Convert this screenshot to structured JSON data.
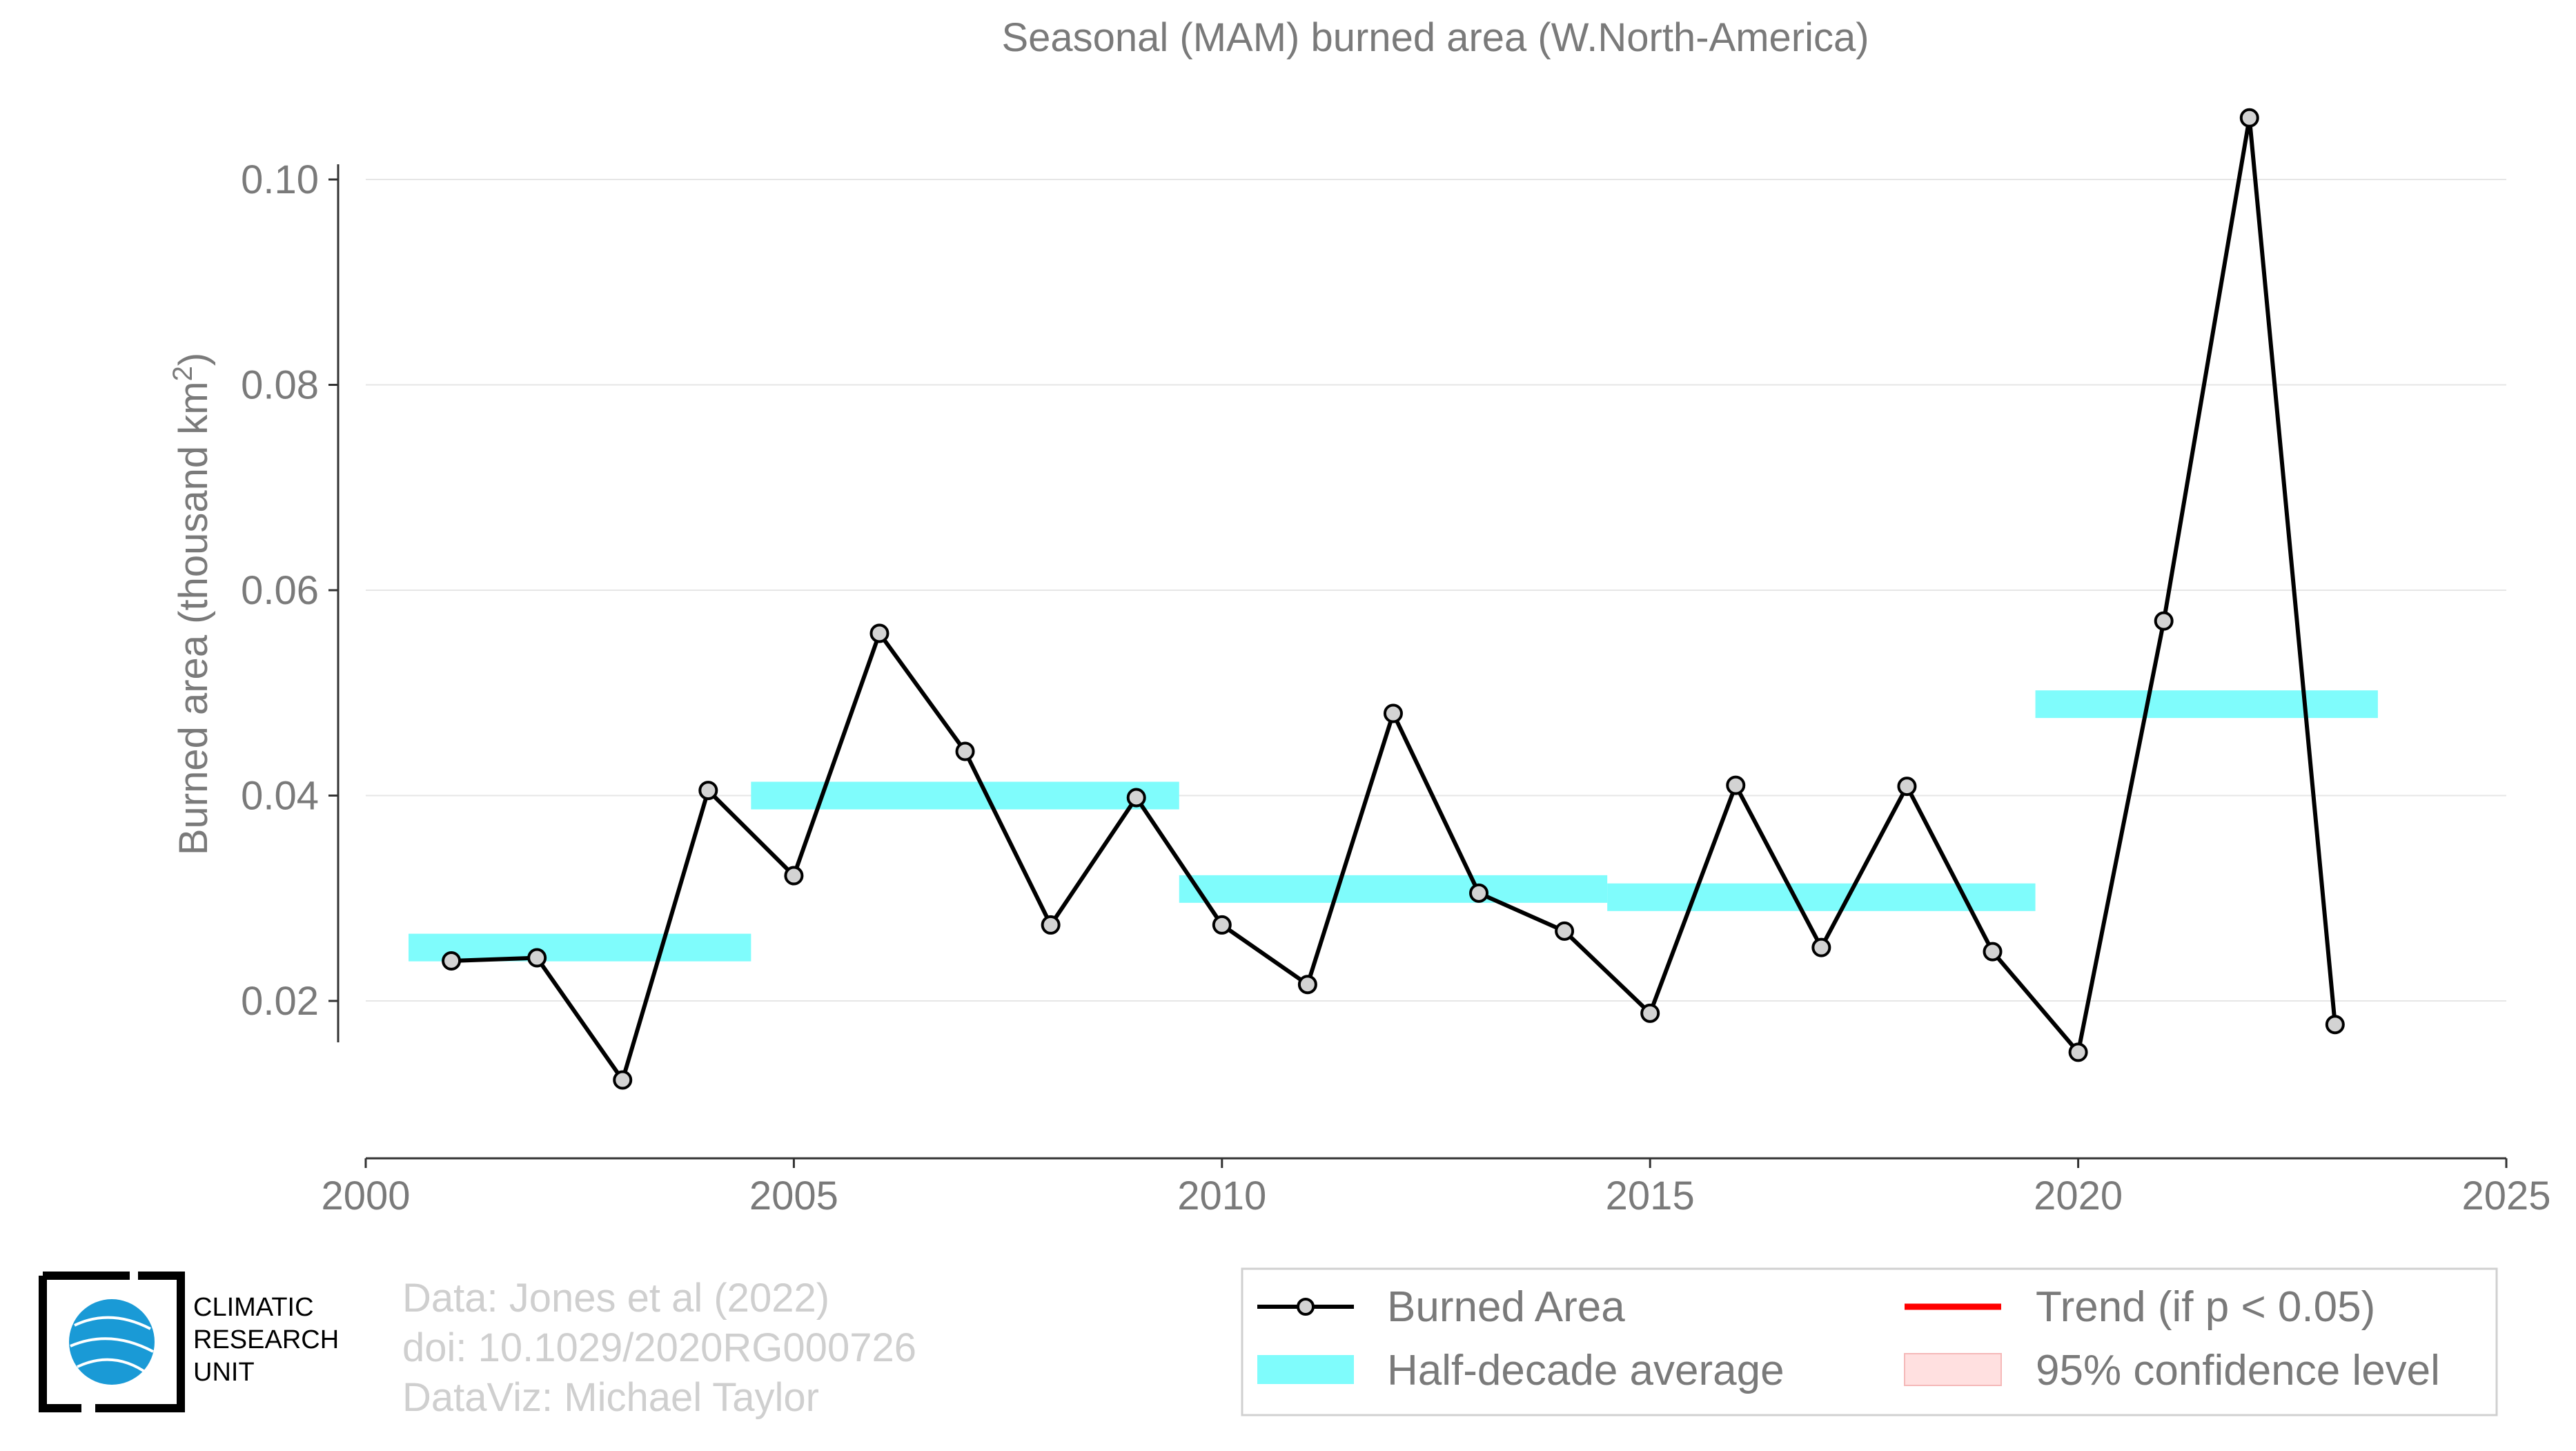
{
  "chart_data": {
    "type": "line",
    "title": "Seasonal (MAM) burned area (W.North-America)",
    "ylabel": "Burned area (thousand km",
    "ylabel_sup": "2",
    "ylabel_close": ")",
    "xlabel": "",
    "xlim": [
      2000,
      2025
    ],
    "ylim": [
      0.005,
      0.11
    ],
    "grid": true,
    "x_ticks": [
      2000,
      2005,
      2010,
      2015,
      2020,
      2025
    ],
    "x_tick_labels": [
      "2000",
      "2005",
      "2010",
      "2015",
      "2020",
      "2025"
    ],
    "y_ticks": [
      0.02,
      0.04,
      0.06,
      0.08,
      0.1
    ],
    "y_tick_labels": [
      "0.02",
      "0.04",
      "0.06",
      "0.08",
      "0.10"
    ],
    "series": [
      {
        "name": "Burned Area",
        "color": "#000000",
        "marker_fill": "#d3d3d3",
        "x": [
          2001,
          2002,
          2003,
          2004,
          2005,
          2006,
          2007,
          2008,
          2009,
          2010,
          2011,
          2012,
          2013,
          2014,
          2015,
          2016,
          2017,
          2018,
          2019,
          2020,
          2021,
          2022,
          2023
        ],
        "values": [
          0.0239,
          0.0242,
          0.0123,
          0.0405,
          0.0322,
          0.0558,
          0.0443,
          0.0274,
          0.0398,
          0.0274,
          0.0216,
          0.048,
          0.0305,
          0.0268,
          0.0188,
          0.041,
          0.0252,
          0.0409,
          0.0248,
          0.015,
          0.057,
          0.106,
          0.0177
        ]
      }
    ],
    "half_decade_average": {
      "name": "Half-decade average",
      "color": "#7ffcfc",
      "segments": [
        {
          "x_start": 2000.5,
          "x_end": 2004.5,
          "value": 0.0252
        },
        {
          "x_start": 2004.5,
          "x_end": 2009.5,
          "value": 0.04
        },
        {
          "x_start": 2009.5,
          "x_end": 2014.5,
          "value": 0.0309
        },
        {
          "x_start": 2014.5,
          "x_end": 2019.5,
          "value": 0.0301
        },
        {
          "x_start": 2019.5,
          "x_end": 2023.5,
          "value": 0.0489
        }
      ]
    },
    "legend": {
      "placement": "bottom-right",
      "entries": [
        {
          "label": "Burned Area",
          "style": "line-marker",
          "color": "#000000"
        },
        {
          "label": "Trend (if p < 0.05)",
          "style": "line",
          "color": "#ff0000"
        },
        {
          "label": "Half-decade average",
          "style": "band",
          "color": "#7ffcfc"
        },
        {
          "label": "95% confidence level",
          "style": "band",
          "color": "#ffe0e0"
        }
      ]
    },
    "credits": [
      "Data: Jones et al (2022)",
      "doi: 10.1029/2020RG000726",
      "DataViz: Michael Taylor"
    ],
    "logo": {
      "lines": [
        "CLIMATIC",
        "RESEARCH",
        "UNIT"
      ],
      "globe_color": "#1a9ad6"
    }
  }
}
